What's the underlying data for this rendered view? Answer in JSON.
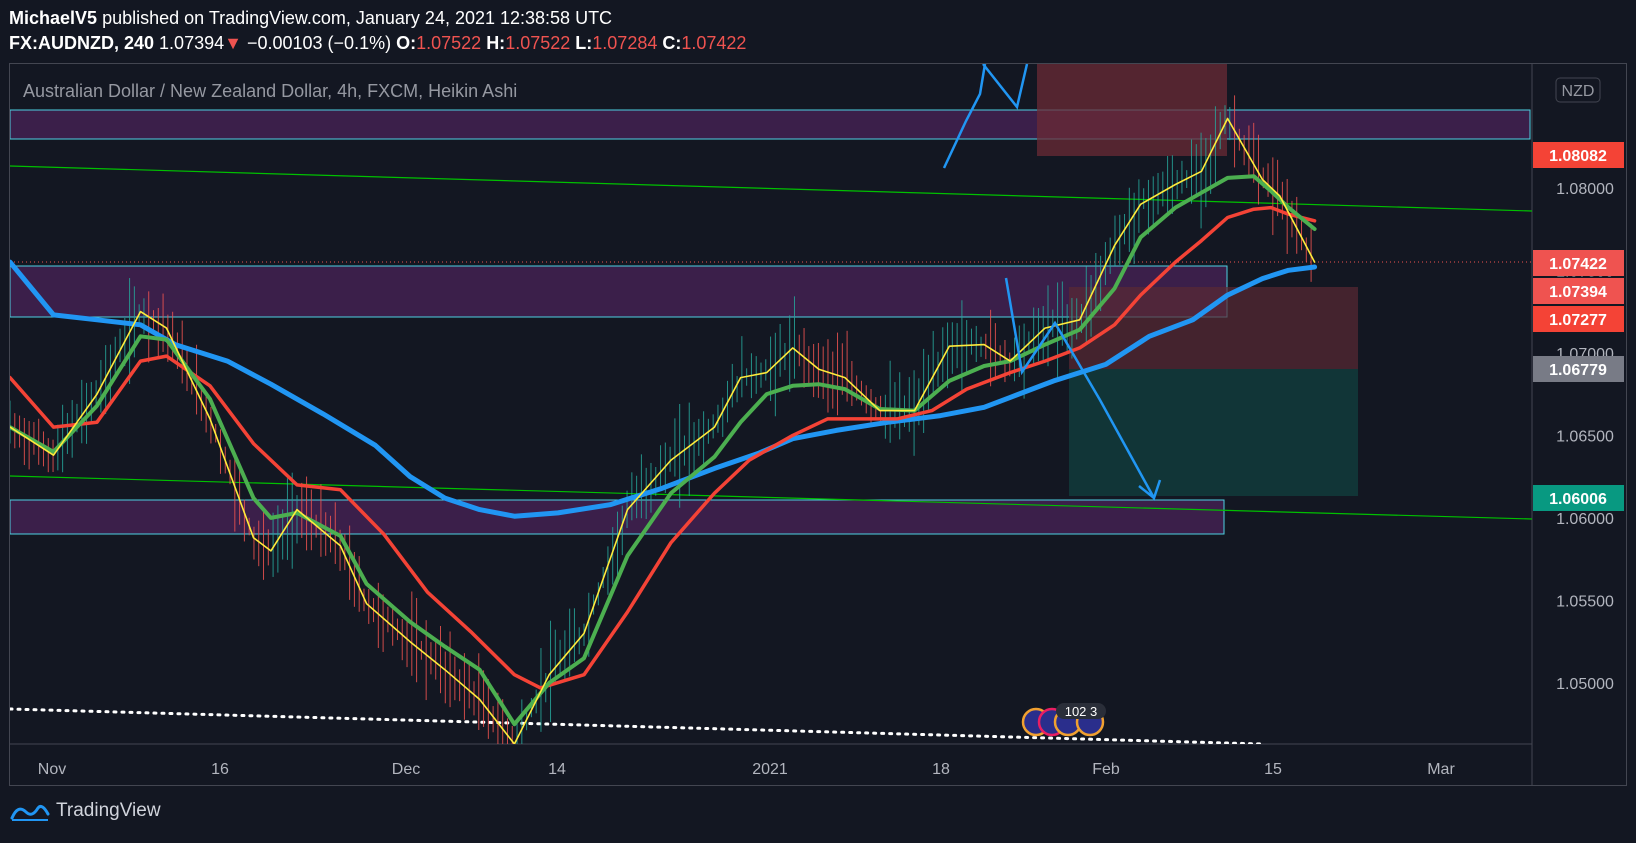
{
  "header": {
    "author": "MichaelV5",
    "published_text": "published on TradingView.com, January 24, 2021 12:38:58 UTC",
    "symbol": "FX:AUDNZD, 240",
    "last_price": "1.07394",
    "change": "−0.00103 (−0.1%)",
    "o_label": "O:",
    "o_value": "1.07522",
    "h_label": "H:",
    "h_value": "1.07522",
    "l_label": "L:",
    "l_value": "1.07284",
    "c_label": "C:",
    "c_value": "1.07422"
  },
  "chart_title": "Australian Dollar / New Zealand Dollar, 4h, FXCM, Heikin Ashi",
  "currency_badge": "NZD",
  "footer": {
    "brand": "TradingView"
  },
  "colors": {
    "background": "#131722",
    "up": "#26a69a",
    "down": "#ef5350",
    "ema_fast": "#ffeb3b",
    "ema_mid": "#4caf50",
    "ema_slow": "#f44336",
    "ema_long": "#2196f3",
    "zone_fill": "#3b1f4a",
    "zone_border": "#4dd0e1",
    "trend_line": "#00c000",
    "drawing": "#2196f3"
  },
  "chart_data": {
    "type": "line",
    "chart_style": "heikin-ashi candles with moving averages",
    "title": "Australian Dollar / New Zealand Dollar, 4h, FXCM, Heikin Ashi",
    "x_ticks": [
      "Nov",
      "16",
      "Dec",
      "14",
      "2021",
      "18",
      "Feb",
      "15",
      "Mar"
    ],
    "y_ticks": [
      "1.05000",
      "1.05500",
      "1.06000",
      "1.06500",
      "1.07000",
      "1.07500",
      "1.08000"
    ],
    "y_tick_values": [
      1.05,
      1.055,
      1.06,
      1.065,
      1.07,
      1.075,
      1.08
    ],
    "ylim": [
      1.0463,
      1.0875
    ],
    "price_labels": [
      {
        "label": "1.08082",
        "value": 1.08082,
        "color": "#f44336"
      },
      {
        "label": "1.07422",
        "value": 1.07422,
        "color": "#ef5350"
      },
      {
        "label": "1.07394",
        "value": 1.07394,
        "color": "#ef5350"
      },
      {
        "label": "1.07277",
        "value": 1.07277,
        "color": "#f44336"
      },
      {
        "label": "1.06779",
        "value": 1.06779,
        "color": "#787b86"
      },
      {
        "label": "1.06006",
        "value": 1.06006,
        "color": "#089981"
      }
    ],
    "series": [
      {
        "color": "#ffeb3b",
        "x": [
          0,
          5,
          10,
          15,
          18,
          23,
          28,
          30,
          33,
          38,
          41,
          46,
          50,
          54,
          58,
          62,
          66,
          71,
          76,
          81,
          84,
          87,
          90,
          93,
          96,
          100,
          104,
          108,
          112,
          115,
          119,
          123,
          127,
          130,
          134,
          137,
          140,
          144,
          146,
          148,
          150
        ],
        "values": [
          1.0655,
          1.0638,
          1.0675,
          1.0725,
          1.0715,
          1.066,
          1.0588,
          1.058,
          1.0605,
          1.0583,
          1.0548,
          1.0525,
          1.0508,
          1.049,
          1.0463,
          1.0505,
          1.053,
          1.0605,
          1.0635,
          1.0655,
          1.0685,
          1.0688,
          1.0703,
          1.069,
          1.0685,
          1.0665,
          1.0665,
          1.0704,
          1.0705,
          1.0695,
          1.0715,
          1.072,
          1.0765,
          1.079,
          1.0802,
          1.081,
          1.0842,
          1.0805,
          1.0795,
          1.0775,
          1.0755
        ]
      },
      {
        "color": "#4caf50",
        "x": [
          0,
          5,
          10,
          15,
          18,
          23,
          28,
          30,
          33,
          38,
          41,
          46,
          50,
          54,
          58,
          62,
          66,
          71,
          76,
          81,
          84,
          87,
          90,
          93,
          96,
          100,
          104,
          108,
          112,
          115,
          119,
          123,
          127,
          130,
          134,
          137,
          140,
          143,
          145,
          147,
          150
        ],
        "values": [
          1.0655,
          1.064,
          1.0668,
          1.071,
          1.0708,
          1.0672,
          1.0612,
          1.06,
          1.0603,
          1.0589,
          1.056,
          1.0537,
          1.0522,
          1.0508,
          1.0475,
          1.05,
          1.0515,
          1.0577,
          1.0615,
          1.0637,
          1.0658,
          1.0675,
          1.068,
          1.0681,
          1.0678,
          1.0666,
          1.0665,
          1.0683,
          1.0692,
          1.0695,
          1.0705,
          1.0714,
          1.0739,
          1.077,
          1.0788,
          1.0797,
          1.0806,
          1.0807,
          1.0798,
          1.0788,
          1.0775
        ]
      },
      {
        "color": "#f44336",
        "x": [
          0,
          5,
          10,
          15,
          18,
          23,
          28,
          33,
          38,
          43,
          48,
          53,
          58,
          61,
          66,
          71,
          76,
          81,
          85,
          90,
          94,
          98,
          102,
          106,
          110,
          115,
          119,
          123,
          127,
          130,
          134,
          137,
          140,
          143,
          145,
          147,
          150
        ],
        "values": [
          1.0685,
          1.0655,
          1.0658,
          1.0695,
          1.0698,
          1.068,
          1.0645,
          1.062,
          1.0617,
          1.059,
          1.0555,
          1.0531,
          1.0505,
          1.0497,
          1.0505,
          1.0543,
          1.0585,
          1.0615,
          1.0635,
          1.065,
          1.066,
          1.066,
          1.066,
          1.0665,
          1.0678,
          1.0688,
          1.0695,
          1.0703,
          1.0717,
          1.0735,
          1.0755,
          1.0768,
          1.0782,
          1.0787,
          1.0788,
          1.0784,
          1.078
        ]
      },
      {
        "color": "#2196f3",
        "x": [
          0,
          5,
          10,
          15,
          19,
          25,
          30,
          36,
          42,
          46,
          50,
          54,
          58,
          63,
          69,
          75,
          81,
          86,
          90,
          95,
          101,
          107,
          112,
          115,
          120,
          126,
          131,
          136,
          140,
          144,
          147,
          150
        ],
        "values": [
          1.0755,
          1.0723,
          1.072,
          1.0717,
          1.0705,
          1.0695,
          1.0681,
          1.0663,
          1.0644,
          1.0625,
          1.0612,
          1.0605,
          1.0601,
          1.0603,
          1.0608,
          1.0618,
          1.063,
          1.0639,
          1.0648,
          1.0653,
          1.0658,
          1.0662,
          1.0667,
          1.0673,
          1.0683,
          1.0693,
          1.071,
          1.072,
          1.0735,
          1.0745,
          1.075,
          1.0752
        ]
      }
    ]
  }
}
